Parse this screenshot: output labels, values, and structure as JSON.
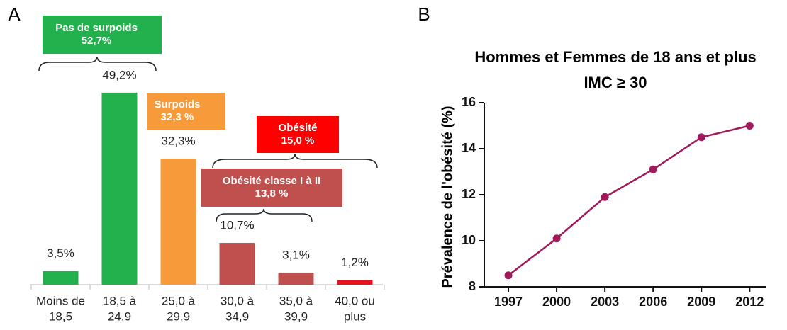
{
  "chart_data": [
    {
      "type": "bar",
      "panel": "A",
      "categories": [
        [
          "Moins de",
          "18,5"
        ],
        [
          "18,5 à",
          "24,9"
        ],
        [
          "25,0 à",
          "29,9"
        ],
        [
          "30,0 à",
          "34,9"
        ],
        [
          "35,0 à",
          "39,9"
        ],
        [
          "40,0 ou",
          "plus"
        ]
      ],
      "values": [
        3.5,
        49.2,
        32.3,
        10.7,
        3.1,
        1.2
      ],
      "value_labels": [
        "3,5%",
        "49,2%",
        "32,3%",
        "10,7%",
        "3,1%",
        "1,2%"
      ],
      "colors": [
        "#22b14c",
        "#22b14c",
        "#f79a3a",
        "#c0504d",
        "#c0504d",
        "#e8141b"
      ],
      "annotations": [
        {
          "text": [
            "Pas de surpoids",
            "52,7%"
          ],
          "color": "#22b14c"
        },
        {
          "text": [
            "Surpoids",
            "32,3 %"
          ],
          "color": "#f79a3a"
        },
        {
          "text": [
            "Obésité",
            "15,0 %"
          ],
          "color": "#ff0000"
        },
        {
          "text": [
            "Obésité classe I à II",
            "13,8 %"
          ],
          "color": "#c0504d"
        }
      ]
    },
    {
      "type": "line",
      "panel": "B",
      "title": [
        "Hommes et Femmes de 18 ans et plus",
        "IMC ≥ 30"
      ],
      "y_label": "Prévalence de l'obésité (%)",
      "x": [
        1997,
        2000,
        2003,
        2006,
        2009,
        2012
      ],
      "values": [
        8.5,
        10.1,
        11.9,
        13.1,
        14.5,
        15.0
      ],
      "color": "#a0195a",
      "xlim": [
        1995.5,
        2013
      ],
      "xticks": [
        1997,
        2000,
        2003,
        2006,
        2009,
        2012
      ],
      "ylim": [
        8,
        16
      ],
      "yticks": [
        8,
        10,
        12,
        14,
        16
      ]
    }
  ]
}
